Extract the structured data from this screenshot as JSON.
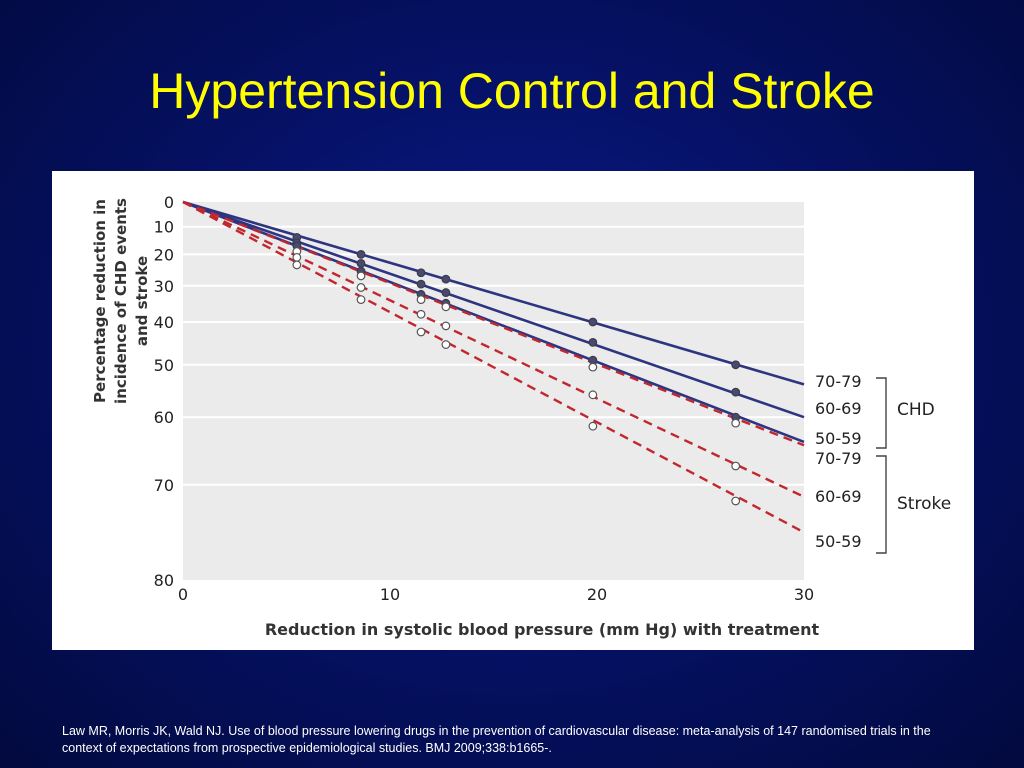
{
  "slide": {
    "title": "Hypertension Control and Stroke",
    "citation": "Law MR, Morris JK, Wald NJ. Use of blood pressure lowering drugs in the prevention of cardiovascular disease: meta-analysis of 147 randomised trials in the context of expectations from prospective epidemiological studies. BMJ 2009;338:b1665-."
  },
  "colors": {
    "chd_line": "#2e3580",
    "stroke_line": "#c1272d",
    "plot_bg": "#ebebeb",
    "title": "#ffff00"
  },
  "chart_data": {
    "type": "line",
    "title": "",
    "xlabel": "Reduction in systolic blood pressure (mm Hg) with treatment",
    "ylabel_lines": [
      "Percentage reduction in",
      "incidence of CHD events",
      "and stroke"
    ],
    "xlim": [
      0,
      30
    ],
    "ylim": [
      0,
      80
    ],
    "y_scale": "log(1 - reduction)",
    "x_ticks": [
      0,
      10,
      20,
      30
    ],
    "y_ticks": [
      0,
      10,
      20,
      30,
      40,
      50,
      60,
      70,
      80
    ],
    "grid": "horizontal",
    "series": [
      {
        "group": "CHD",
        "age": "70-79",
        "style": "solid",
        "line": [
          [
            0,
            0
          ],
          [
            30,
            54
          ]
        ],
        "points": [
          [
            5.5,
            14
          ],
          [
            8.6,
            20
          ],
          [
            11.5,
            26
          ],
          [
            12.7,
            28
          ],
          [
            19.8,
            40
          ],
          [
            26.7,
            50
          ]
        ]
      },
      {
        "group": "CHD",
        "age": "60-69",
        "style": "solid",
        "line": [
          [
            0,
            0
          ],
          [
            30,
            60
          ]
        ],
        "points": [
          [
            5.5,
            16
          ],
          [
            8.6,
            23
          ],
          [
            11.5,
            29.5
          ],
          [
            12.7,
            32
          ],
          [
            19.8,
            45
          ],
          [
            26.7,
            55.5
          ]
        ]
      },
      {
        "group": "CHD",
        "age": "50-59",
        "style": "solid",
        "line": [
          [
            0,
            0
          ],
          [
            30,
            64
          ]
        ],
        "points": [
          [
            5.5,
            17
          ],
          [
            8.6,
            25.5
          ],
          [
            11.5,
            32.5
          ],
          [
            12.7,
            35
          ],
          [
            19.8,
            49
          ],
          [
            26.7,
            60
          ]
        ]
      },
      {
        "group": "Stroke",
        "age": "70-79",
        "style": "dashed",
        "line": [
          [
            0,
            0
          ],
          [
            30,
            64.5
          ]
        ],
        "points": [
          [
            5.5,
            19
          ],
          [
            8.6,
            27
          ],
          [
            11.5,
            34
          ],
          [
            12.7,
            36
          ],
          [
            19.8,
            50.5
          ],
          [
            26.7,
            61
          ]
        ]
      },
      {
        "group": "Stroke",
        "age": "60-69",
        "style": "dashed",
        "line": [
          [
            0,
            0
          ],
          [
            30,
            71.5
          ]
        ],
        "points": [
          [
            5.5,
            21
          ],
          [
            8.6,
            30.5
          ],
          [
            11.5,
            38
          ],
          [
            12.7,
            41
          ],
          [
            19.8,
            56
          ],
          [
            26.7,
            67.5
          ]
        ]
      },
      {
        "group": "Stroke",
        "age": "50-59",
        "style": "dashed",
        "line": [
          [
            0,
            0
          ],
          [
            30,
            75.5
          ]
        ],
        "points": [
          [
            5.5,
            23.5
          ],
          [
            8.6,
            34
          ],
          [
            11.5,
            42.5
          ],
          [
            12.7,
            45.5
          ],
          [
            19.8,
            61.5
          ],
          [
            26.7,
            72
          ]
        ]
      }
    ],
    "legend": {
      "placement": "right",
      "groups": [
        {
          "name": "CHD",
          "labels": [
            "70-79",
            "60-69",
            "50-59"
          ]
        },
        {
          "name": "Stroke",
          "labels": [
            "70-79",
            "60-69",
            "50-59"
          ]
        }
      ]
    }
  }
}
